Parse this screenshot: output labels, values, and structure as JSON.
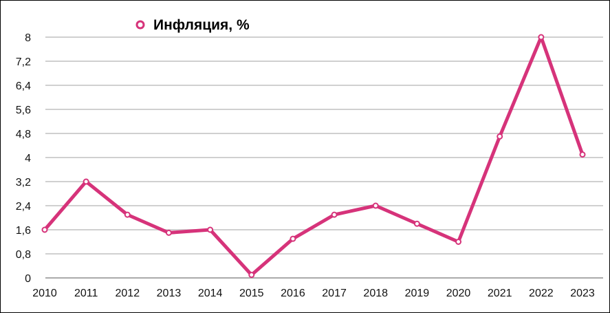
{
  "chart_data": {
    "type": "line",
    "title": "",
    "xlabel": "",
    "ylabel": "",
    "categories": [
      "2010",
      "2011",
      "2012",
      "2013",
      "2014",
      "2015",
      "2016",
      "2017",
      "2018",
      "2019",
      "2020",
      "2021",
      "2022",
      "2023"
    ],
    "series": [
      {
        "name": "Инфляция, %",
        "color": "#d6337a",
        "values": [
          1.6,
          3.2,
          2.1,
          1.5,
          1.6,
          0.1,
          1.3,
          2.1,
          2.4,
          1.8,
          1.2,
          4.7,
          8.0,
          4.1
        ]
      }
    ],
    "yticks": [
      "0",
      "0,8",
      "1,6",
      "2,4",
      "3,2",
      "4",
      "4,8",
      "5,6",
      "6,4",
      "7,2",
      "8"
    ],
    "ylim": [
      0,
      8
    ],
    "grid": true,
    "legend_position": "top"
  }
}
